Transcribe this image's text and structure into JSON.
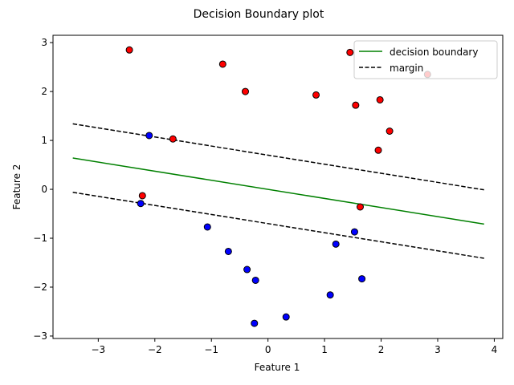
{
  "chart_data": {
    "type": "scatter",
    "title": "Decision Boundary plot",
    "xlabel": "Feature 1",
    "ylabel": "Feature 2",
    "xlim": [
      -3.8,
      4.15
    ],
    "ylim": [
      -3.05,
      3.15
    ],
    "xticks": [
      -3,
      -2,
      -1,
      0,
      1,
      2,
      3,
      4
    ],
    "xtick_labels": [
      "−3",
      "−2",
      "−1",
      "0",
      "1",
      "2",
      "3",
      "4"
    ],
    "yticks": [
      -3,
      -2,
      -1,
      0,
      1,
      2,
      3
    ],
    "ytick_labels": [
      "−3",
      "−2",
      "−1",
      "0",
      "1",
      "2",
      "3"
    ],
    "grid": false,
    "legend_position": "top-right",
    "colors": {
      "class_red": "#ff0000",
      "class_blue": "#0000ff",
      "marker_edge": "#000000",
      "boundary": "#008000",
      "margin": "#000000"
    },
    "series": [
      {
        "class": "red",
        "points": [
          [
            -2.45,
            2.85
          ],
          [
            -0.8,
            2.56
          ],
          [
            -0.4,
            2.0
          ],
          [
            0.85,
            1.93
          ],
          [
            1.45,
            2.8
          ],
          [
            1.55,
            1.72
          ],
          [
            1.98,
            1.83
          ],
          [
            2.15,
            1.19
          ],
          [
            1.95,
            0.8
          ],
          [
            -1.68,
            1.03
          ],
          [
            -2.22,
            -0.13
          ],
          [
            1.63,
            -0.36
          ],
          [
            2.82,
            2.35
          ]
        ]
      },
      {
        "class": "blue",
        "points": [
          [
            -2.1,
            1.1
          ],
          [
            -2.25,
            -0.29
          ],
          [
            -1.07,
            -0.77
          ],
          [
            -0.7,
            -1.27
          ],
          [
            -0.37,
            -1.64
          ],
          [
            -0.22,
            -1.86
          ],
          [
            -0.24,
            -2.74
          ],
          [
            0.32,
            -2.61
          ],
          [
            1.1,
            -2.16
          ],
          [
            1.2,
            -1.12
          ],
          [
            1.53,
            -0.87
          ],
          [
            1.66,
            -1.83
          ]
        ]
      }
    ],
    "lines": [
      {
        "name": "decision boundary",
        "style": "solid",
        "x": [
          -3.45,
          3.82
        ],
        "y": [
          0.64,
          -0.71
        ]
      },
      {
        "name": "margin",
        "style": "dashed",
        "x": [
          -3.45,
          3.82
        ],
        "y": [
          1.34,
          -0.01
        ]
      },
      {
        "name": "margin",
        "style": "dashed",
        "x": [
          -3.45,
          3.82
        ],
        "y": [
          -0.06,
          -1.41
        ]
      }
    ],
    "legend": [
      "decision boundary",
      "margin"
    ]
  }
}
